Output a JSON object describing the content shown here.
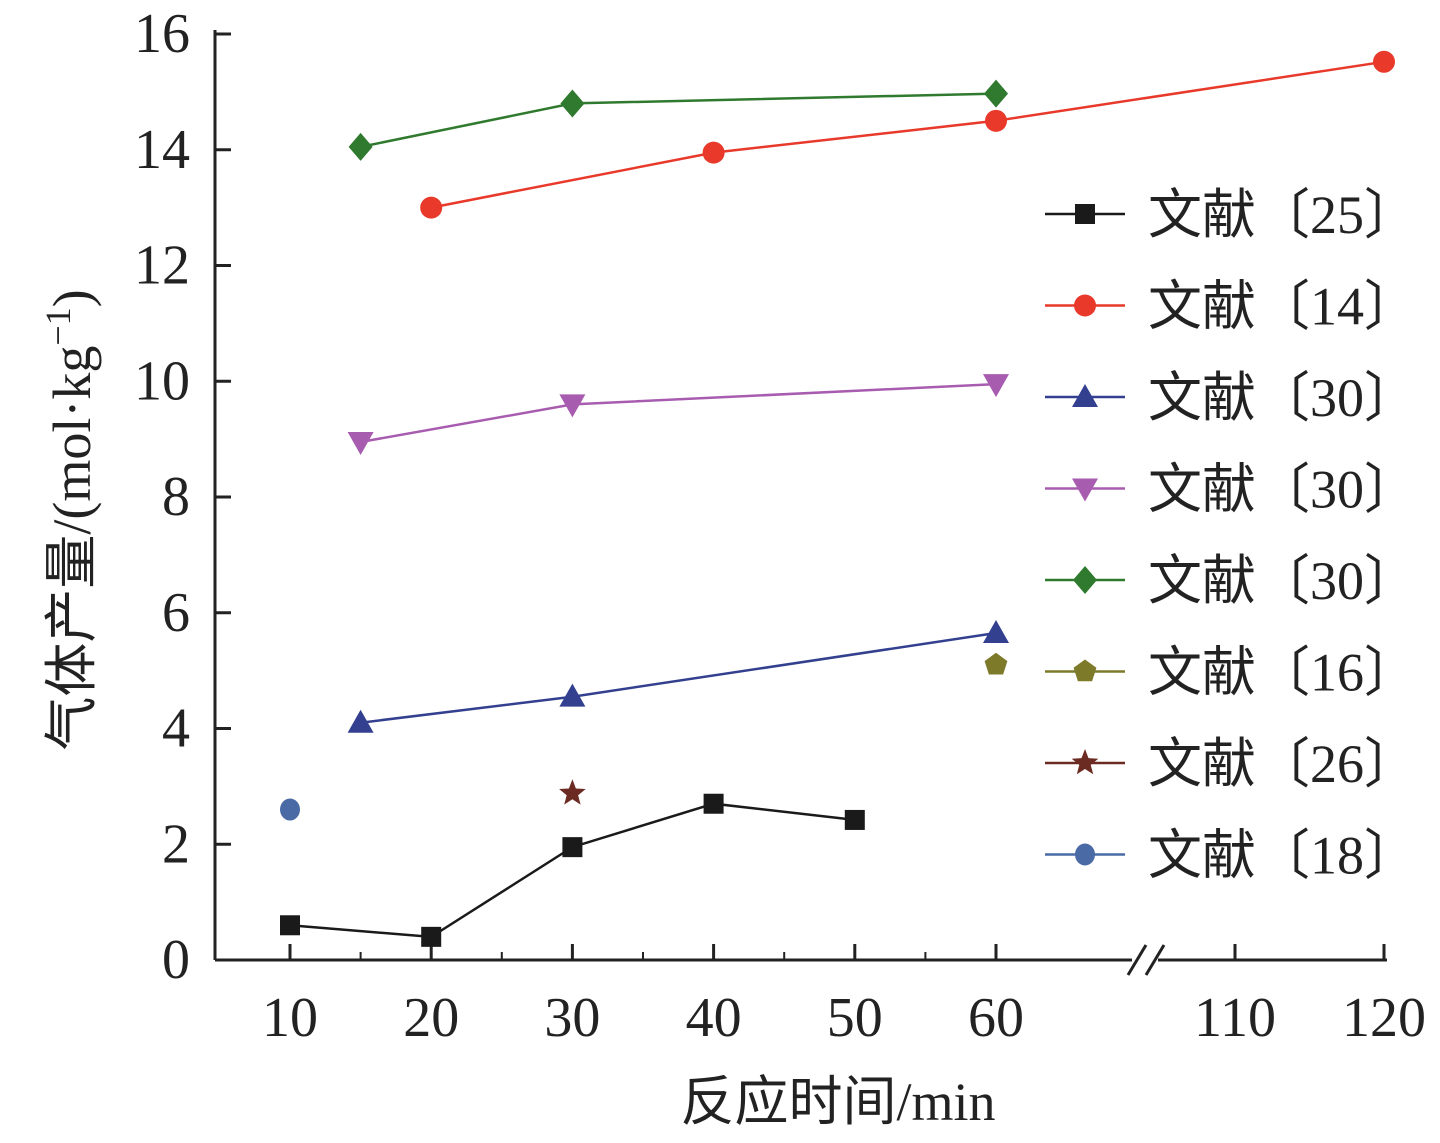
{
  "chart_data": {
    "type": "line",
    "xlabel": "反应时间/min",
    "ylabel": "气体产量/(mol·kg",
    "ylabel_superscript": "−1",
    "ylabel_close": ")",
    "ylim": [
      0,
      16
    ],
    "yticks": [
      "0",
      "2",
      "4",
      "6",
      "8",
      "10",
      "12",
      "14",
      "16"
    ],
    "xticks": [
      "10",
      "20",
      "30",
      "40",
      "50",
      "60",
      "110",
      "120"
    ],
    "x_axis_break": "between 60 and 110",
    "legend_position": "right",
    "series": [
      {
        "name": "文献〔25〕",
        "color": "#1a1a1a",
        "marker": "square",
        "points": [
          [
            10,
            0.6
          ],
          [
            20,
            0.4
          ],
          [
            30,
            1.95
          ],
          [
            40,
            2.7
          ],
          [
            50,
            2.42
          ]
        ]
      },
      {
        "name": "文献〔14〕",
        "color": "#e8392a",
        "marker": "circle",
        "points": [
          [
            20,
            13.0
          ],
          [
            40,
            13.95
          ],
          [
            60,
            14.5
          ],
          [
            120,
            15.52
          ]
        ]
      },
      {
        "name": "文献〔30〕",
        "color": "#33408f",
        "marker": "triangle-up",
        "points": [
          [
            15,
            4.1
          ],
          [
            30,
            4.55
          ],
          [
            60,
            5.65
          ]
        ]
      },
      {
        "name": "文献〔30〕",
        "color": "#a85cb0",
        "marker": "triangle-down",
        "points": [
          [
            15,
            8.95
          ],
          [
            30,
            9.6
          ],
          [
            60,
            9.95
          ]
        ]
      },
      {
        "name": "文献〔30〕",
        "color": "#2f7a2e",
        "marker": "diamond",
        "points": [
          [
            15,
            14.05
          ],
          [
            30,
            14.8
          ],
          [
            60,
            14.97
          ]
        ]
      },
      {
        "name": "文献〔16〕",
        "color": "#7d7a2a",
        "marker": "pentagon",
        "points": [
          [
            60,
            5.1
          ]
        ]
      },
      {
        "name": "文献〔26〕",
        "color": "#6b2a22",
        "marker": "star",
        "points": [
          [
            30,
            2.88
          ]
        ]
      },
      {
        "name": "文献〔18〕",
        "color": "#4a6aa5",
        "marker": "ball",
        "points": [
          [
            10,
            2.6
          ]
        ]
      }
    ]
  }
}
